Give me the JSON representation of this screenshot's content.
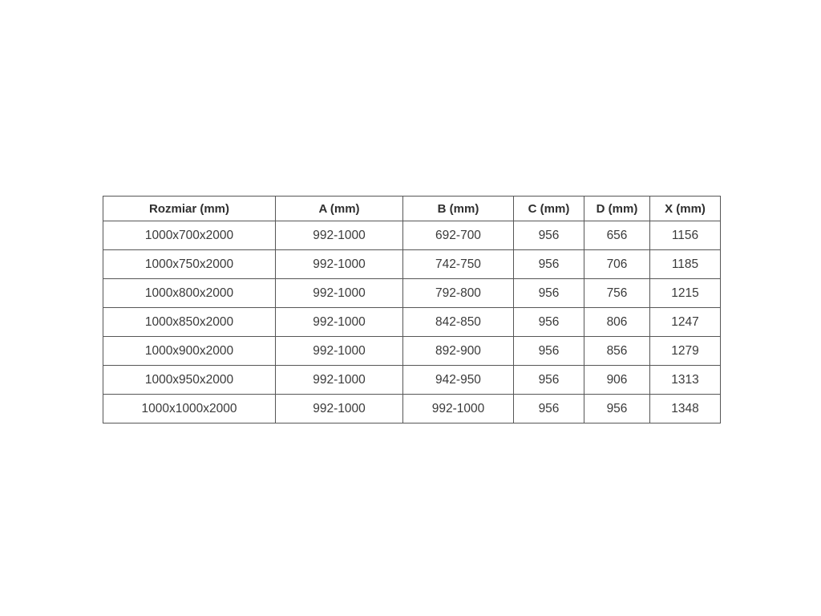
{
  "colors": {
    "background": "#ffffff",
    "table_border": "#565656",
    "header_text": "#2f2f2f",
    "cell_text": "#3a3a3a"
  },
  "chart_data": {
    "type": "table",
    "title": "",
    "columns": [
      "Rozmiar (mm)",
      "A (mm)",
      "B (mm)",
      "C (mm)",
      "D (mm)",
      "X (mm)"
    ],
    "rows": [
      [
        "1000x700x2000",
        "992-1000",
        "692-700",
        "956",
        "656",
        "1156"
      ],
      [
        "1000x750x2000",
        "992-1000",
        "742-750",
        "956",
        "706",
        "1185"
      ],
      [
        "1000x800x2000",
        "992-1000",
        "792-800",
        "956",
        "756",
        "1215"
      ],
      [
        "1000x850x2000",
        "992-1000",
        "842-850",
        "956",
        "806",
        "1247"
      ],
      [
        "1000x900x2000",
        "992-1000",
        "892-900",
        "956",
        "856",
        "1279"
      ],
      [
        "1000x950x2000",
        "992-1000",
        "942-950",
        "956",
        "906",
        "1313"
      ],
      [
        "1000x1000x2000",
        "992-1000",
        "992-1000",
        "956",
        "956",
        "1348"
      ]
    ]
  }
}
